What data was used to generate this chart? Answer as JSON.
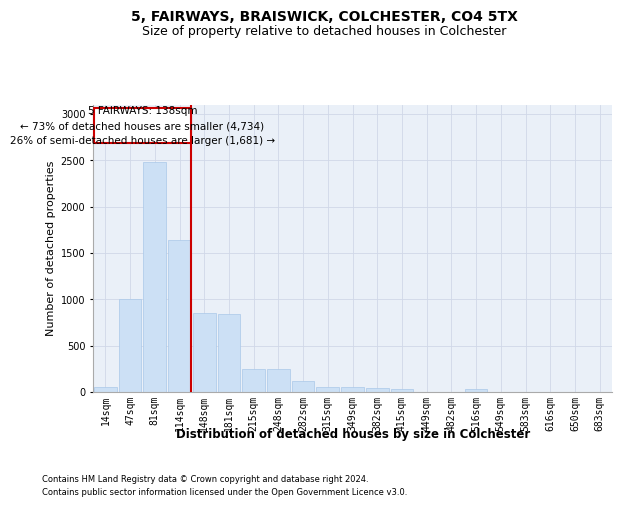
{
  "title1": "5, FAIRWAYS, BRAISWICK, COLCHESTER, CO4 5TX",
  "title2": "Size of property relative to detached houses in Colchester",
  "xlabel": "Distribution of detached houses by size in Colchester",
  "ylabel": "Number of detached properties",
  "footnote1": "Contains HM Land Registry data © Crown copyright and database right 2024.",
  "footnote2": "Contains public sector information licensed under the Open Government Licence v3.0.",
  "categories": [
    "14sqm",
    "47sqm",
    "81sqm",
    "114sqm",
    "148sqm",
    "181sqm",
    "215sqm",
    "248sqm",
    "282sqm",
    "315sqm",
    "349sqm",
    "382sqm",
    "415sqm",
    "449sqm",
    "482sqm",
    "516sqm",
    "549sqm",
    "583sqm",
    "616sqm",
    "650sqm",
    "683sqm"
  ],
  "values": [
    55,
    1000,
    2480,
    1640,
    850,
    840,
    250,
    250,
    120,
    50,
    50,
    45,
    30,
    0,
    0,
    30,
    0,
    0,
    0,
    0,
    0
  ],
  "bar_color": "#cce0f5",
  "bar_edge_color": "#aac8e8",
  "grid_color": "#d0d8e8",
  "bg_color": "#eaf0f8",
  "vline_color": "#cc0000",
  "vline_x_idx": 3,
  "annotation_text": "5 FAIRWAYS: 138sqm\n← 73% of detached houses are smaller (4,734)\n26% of semi-detached houses are larger (1,681) →",
  "annotation_box_color": "#cc0000",
  "ylim": [
    0,
    3100
  ],
  "title1_fontsize": 10,
  "title2_fontsize": 9,
  "xlabel_fontsize": 8.5,
  "ylabel_fontsize": 8,
  "tick_fontsize": 7,
  "annot_fontsize": 7.5,
  "footnote_fontsize": 6
}
